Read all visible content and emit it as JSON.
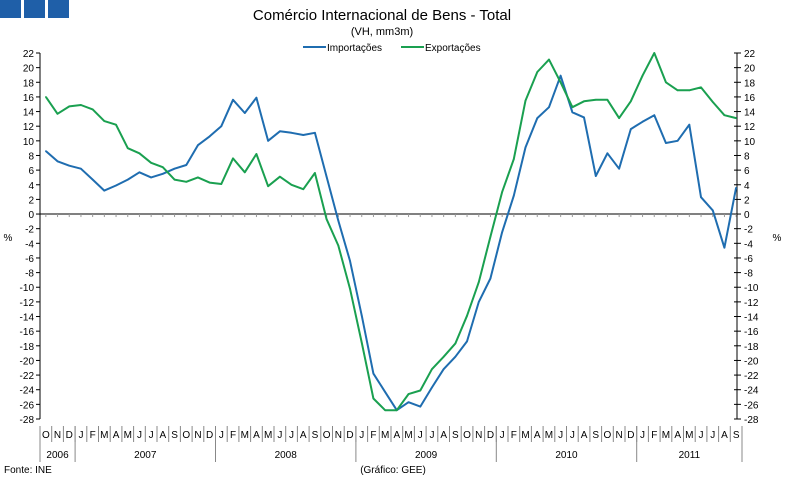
{
  "logo": {
    "color": "#1f5fa8"
  },
  "chart_data": {
    "type": "line",
    "title": "Comércio Internacional de Bens - Total",
    "subtitle": "(VH, mm3m)",
    "ylabel": "%",
    "ylim": [
      -28,
      22
    ],
    "yticks": [
      22,
      20,
      18,
      16,
      14,
      12,
      10,
      8,
      6,
      4,
      2,
      0,
      -2,
      -4,
      -6,
      -8,
      -10,
      -12,
      -14,
      -16,
      -18,
      -20,
      -22,
      -24,
      -26,
      -28
    ],
    "legend_position": "top-center",
    "months": [
      "O",
      "N",
      "D",
      "J",
      "F",
      "M",
      "A",
      "M",
      "J",
      "J",
      "A",
      "S",
      "O",
      "N",
      "D",
      "J",
      "F",
      "M",
      "A",
      "M",
      "J",
      "J",
      "A",
      "S",
      "O",
      "N",
      "D",
      "J",
      "F",
      "M",
      "A",
      "M",
      "J",
      "J",
      "A",
      "S",
      "O",
      "N",
      "D",
      "J",
      "F",
      "M",
      "A",
      "M",
      "J",
      "J",
      "A",
      "S",
      "O",
      "N",
      "D",
      "J",
      "F",
      "M",
      "A",
      "M",
      "J",
      "J",
      "A",
      "S"
    ],
    "years": [
      "2006",
      "2007",
      "2008",
      "2009",
      "2010",
      "2011"
    ],
    "series": [
      {
        "name": "Importações",
        "color": "#1f6db0",
        "values": [
          8.6,
          7.2,
          6.6,
          6.2,
          4.7,
          3.2,
          3.9,
          4.7,
          5.7,
          5.0,
          5.5,
          6.2,
          6.7,
          9.4,
          10.6,
          12.0,
          15.6,
          13.8,
          15.9,
          10.0,
          11.3,
          11.1,
          10.8,
          11.1,
          5.1,
          -0.9,
          -6.4,
          -13.9,
          -21.8,
          -24.3,
          -26.8,
          -25.7,
          -26.3,
          -23.7,
          -21.2,
          -19.5,
          -17.4,
          -12.0,
          -8.8,
          -2.5,
          2.5,
          9.1,
          13.1,
          14.6,
          18.9,
          13.9,
          13.2,
          5.2,
          8.3,
          6.2,
          11.6,
          12.6,
          13.5,
          9.7,
          10.0,
          12.2,
          2.3,
          0.5,
          -4.6,
          3.6
        ]
      },
      {
        "name": "Exportações",
        "color": "#1aa050",
        "values": [
          16.0,
          13.7,
          14.7,
          14.9,
          14.3,
          12.7,
          12.2,
          9.0,
          8.3,
          7.0,
          6.4,
          4.7,
          4.4,
          5.0,
          4.3,
          4.1,
          7.6,
          5.7,
          8.2,
          3.8,
          5.1,
          4.0,
          3.4,
          5.6,
          -0.7,
          -4.3,
          -10.2,
          -17.6,
          -25.2,
          -26.8,
          -26.8,
          -24.6,
          -24.1,
          -21.2,
          -19.5,
          -17.7,
          -13.9,
          -9.3,
          -3.1,
          3.0,
          7.5,
          15.5,
          19.4,
          21.1,
          18.0,
          14.6,
          15.4,
          15.6,
          15.6,
          13.1,
          15.4,
          18.9,
          22.0,
          18.0,
          16.9,
          16.9,
          17.3,
          15.3,
          13.5,
          13.1
        ]
      }
    ]
  },
  "footer": {
    "source": "Fonte: INE",
    "credit": "(Gráfico: GEE)"
  }
}
